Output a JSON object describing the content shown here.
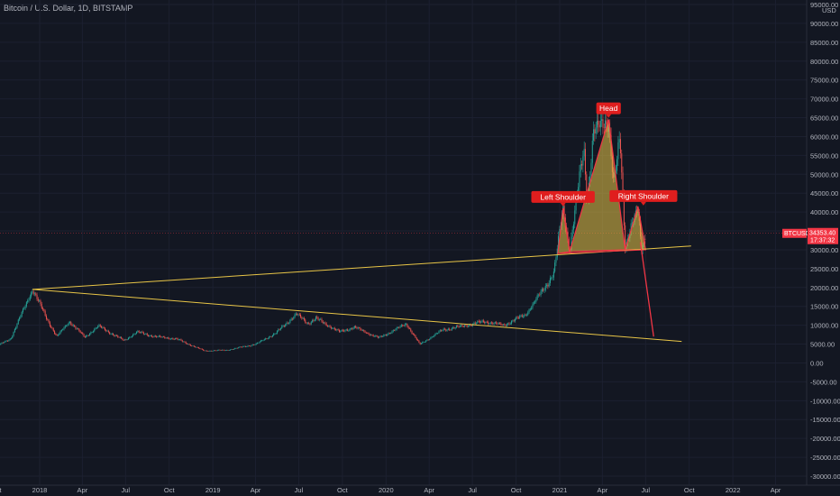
{
  "header": {
    "title": "Bitcoin / U.S. Dollar, 1D, BITSTAMP"
  },
  "chart_data": {
    "type": "candlestick",
    "symbol": "BTCUSD",
    "y_axis": {
      "unit": "USD",
      "ylim": [
        -30000,
        95000
      ],
      "ticks": [
        "95000.00",
        "90000.00",
        "85000.00",
        "80000.00",
        "75000.00",
        "70000.00",
        "65000.00",
        "60000.00",
        "55000.00",
        "50000.00",
        "45000.00",
        "40000.00",
        "35000.00",
        "30000.00",
        "25000.00",
        "20000.00",
        "15000.00",
        "10000.00",
        "5000.00",
        "0.00",
        "-5000.00",
        "-10000.00",
        "-15000.00",
        "-20000.00",
        "-25000.00",
        "-30000.00"
      ]
    },
    "x_axis": {
      "ticks": [
        "Oct",
        "2018",
        "Apr",
        "Jul",
        "Oct",
        "2019",
        "Apr",
        "Jul",
        "Oct",
        "2020",
        "Apr",
        "Jul",
        "Oct",
        "2021",
        "Apr",
        "Jul",
        "Oct",
        "2022",
        "Apr"
      ]
    },
    "price_line": {
      "value": 34353.4,
      "label": "34353.40",
      "symbol_label": "BTCUSD",
      "countdown": "17:37:32",
      "color": "#f23645"
    },
    "price_path": [
      [
        "2017-10-01",
        4300
      ],
      [
        "2017-11-01",
        6500
      ],
      [
        "2017-12-17",
        19500
      ],
      [
        "2018-01-15",
        12000
      ],
      [
        "2018-02-06",
        7000
      ],
      [
        "2018-03-05",
        11000
      ],
      [
        "2018-04-06",
        6800
      ],
      [
        "2018-05-05",
        9800
      ],
      [
        "2018-06-28",
        5900
      ],
      [
        "2018-07-25",
        8200
      ],
      [
        "2018-09-01",
        7000
      ],
      [
        "2018-10-15",
        6400
      ],
      [
        "2018-11-20",
        4500
      ],
      [
        "2018-12-15",
        3200
      ],
      [
        "2019-02-01",
        3400
      ],
      [
        "2019-04-02",
        5000
      ],
      [
        "2019-05-15",
        8000
      ],
      [
        "2019-06-26",
        13000
      ],
      [
        "2019-07-20",
        10500
      ],
      [
        "2019-08-06",
        11800
      ],
      [
        "2019-09-25",
        8200
      ],
      [
        "2019-10-26",
        9500
      ],
      [
        "2019-12-17",
        6600
      ],
      [
        "2020-02-13",
        10400
      ],
      [
        "2020-03-12",
        4900
      ],
      [
        "2020-04-30",
        8800
      ],
      [
        "2020-06-01",
        9500
      ],
      [
        "2020-07-27",
        11000
      ],
      [
        "2020-09-05",
        10000
      ],
      [
        "2020-10-21",
        12800
      ],
      [
        "2020-11-25",
        19000
      ],
      [
        "2020-12-20",
        24000
      ],
      [
        "2021-01-08",
        41000
      ],
      [
        "2021-01-22",
        30000
      ],
      [
        "2021-02-21",
        57000
      ],
      [
        "2021-02-28",
        43000
      ],
      [
        "2021-03-13",
        61000
      ],
      [
        "2021-04-14",
        64800
      ],
      [
        "2021-04-25",
        47000
      ],
      [
        "2021-05-08",
        59000
      ],
      [
        "2021-05-19",
        31000
      ],
      [
        "2021-06-01",
        37000
      ],
      [
        "2021-06-15",
        40000
      ],
      [
        "2021-06-22",
        30000
      ],
      [
        "2021-07-02",
        34353
      ]
    ],
    "annotations": {
      "head_and_shoulders": {
        "color": "#e8c547",
        "left_shoulder": {
          "label": "Left Shoulder",
          "points": [
            [
              "2020-12-28",
              29000
            ],
            [
              "2021-01-08",
              41000
            ],
            [
              "2021-01-22",
              29500
            ]
          ]
        },
        "head": {
          "label": "Head",
          "points": [
            [
              "2021-01-22",
              29500
            ],
            [
              "2021-04-14",
              64500
            ],
            [
              "2021-05-19",
              30000
            ]
          ]
        },
        "right_shoulder": {
          "label": "Right Shoulder",
          "points": [
            [
              "2021-05-19",
              30000
            ],
            [
              "2021-06-15",
              41500
            ],
            [
              "2021-07-01",
              30000
            ]
          ]
        }
      },
      "upper_trendline": {
        "color": "#e8c547",
        "points": [
          [
            "2017-12-17",
            19500
          ],
          [
            "2021-10-05",
            31000
          ]
        ]
      },
      "lower_trendline": {
        "color": "#e8c547",
        "points": [
          [
            "2017-12-17",
            19500
          ],
          [
            "2021-09-15",
            5700
          ]
        ]
      },
      "projection_arrow": {
        "color": "#f23645",
        "points": [
          [
            "2021-06-20",
            32000
          ],
          [
            "2021-07-18",
            7000
          ]
        ]
      }
    }
  }
}
